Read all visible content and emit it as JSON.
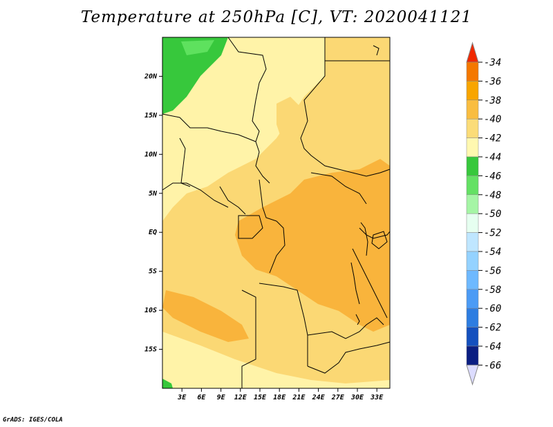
{
  "title": "Temperature at 250hPa [C], VT: 2020041121",
  "credit": "GrADS: IGES/COLA",
  "map": {
    "lon_range": [
      0,
      35
    ],
    "lat_range": [
      -20,
      25
    ],
    "lon_labels": [
      "3E",
      "6E",
      "9E",
      "12E",
      "15E",
      "18E",
      "21E",
      "24E",
      "27E",
      "30E",
      "33E"
    ],
    "lon_values": [
      3,
      6,
      9,
      12,
      15,
      18,
      21,
      24,
      27,
      30,
      33
    ],
    "lat_labels": [
      "20N",
      "15N",
      "10N",
      "5N",
      "EQ",
      "5S",
      "10S",
      "15S"
    ],
    "lat_values": [
      20,
      15,
      10,
      5,
      0,
      -5,
      -10,
      -15
    ]
  },
  "colorbar": {
    "labels": [
      "-34",
      "-36",
      "-38",
      "-40",
      "-42",
      "-44",
      "-46",
      "-48",
      "-50",
      "-52",
      "-54",
      "-56",
      "-58",
      "-60",
      "-62",
      "-64",
      "-66"
    ],
    "colors": [
      "#e13c00",
      "#f47800",
      "#f8a500",
      "#f9bd40",
      "#fbdc78",
      "#fff8b0",
      "#37c83c",
      "#64e164",
      "#a5f5a5",
      "#e6fff0",
      "#bfe6ff",
      "#94d2ff",
      "#6eb9ff",
      "#4b9bf5",
      "#2d7de1",
      "#1450be",
      "#0a1e82",
      "#140f5a"
    ],
    "top_arrow_color": "#f02800",
    "bottom_arrow_color": "#dcdcff"
  },
  "field_colors": {
    "warm_38": "#f9b43c",
    "warm_40": "#fbd874",
    "cool_42": "#fff3a8",
    "cold_44": "#37c83c",
    "cold_46": "#5ee15e"
  }
}
